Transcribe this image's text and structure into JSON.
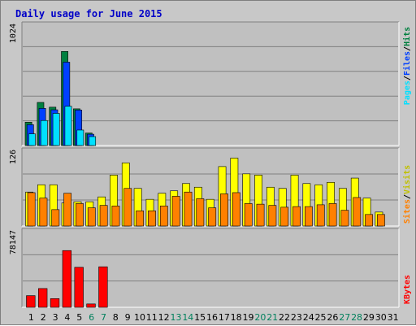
{
  "title": "Daily usage for June 2015",
  "colors": {
    "background": "#c8c8c8",
    "plot_background": "#c0c0c0",
    "hits": "#008040",
    "files": "#0040ff",
    "pages": "#00e0ff",
    "visits": "#ffff00",
    "sites": "#ff8000",
    "kbytes": "#ff0000",
    "weekend_label": "#00805c",
    "title": "#0000c8"
  },
  "chart_data": [
    {
      "type": "bar",
      "panel": "top",
      "scale_max_label": "1024",
      "ylim": [
        0,
        1024
      ],
      "legend": {
        "pages": "Pages",
        "files": "Files",
        "hits": "Hits",
        "sep": "/"
      },
      "categories": [
        "1",
        "2",
        "3",
        "4",
        "5",
        "6",
        "7",
        "8",
        "9",
        "10",
        "11",
        "12",
        "13",
        "14",
        "15",
        "16",
        "17",
        "18",
        "19",
        "20",
        "21",
        "22",
        "23",
        "24",
        "25",
        "26",
        "27",
        "28",
        "29",
        "30",
        "31"
      ],
      "series": [
        {
          "name": "Hits",
          "values": [
            196,
            362,
            322,
            790,
            308,
            105,
            0,
            0,
            0,
            0,
            0,
            0,
            0,
            0,
            0,
            0,
            0,
            0,
            0,
            0,
            0,
            0,
            0,
            0,
            0,
            0,
            0,
            0,
            0,
            0,
            0
          ]
        },
        {
          "name": "Files",
          "values": [
            175,
            312,
            300,
            700,
            298,
            95,
            0,
            0,
            0,
            0,
            0,
            0,
            0,
            0,
            0,
            0,
            0,
            0,
            0,
            0,
            0,
            0,
            0,
            0,
            0,
            0,
            0,
            0,
            0,
            0,
            0
          ]
        },
        {
          "name": "Pages",
          "values": [
            98,
            210,
            270,
            330,
            130,
            75,
            0,
            0,
            0,
            0,
            0,
            0,
            0,
            0,
            0,
            0,
            0,
            0,
            0,
            0,
            0,
            0,
            0,
            0,
            0,
            0,
            0,
            0,
            0,
            0,
            0
          ]
        }
      ]
    },
    {
      "type": "bar",
      "panel": "middle",
      "scale_max_label": "126",
      "ylim": [
        0,
        126
      ],
      "legend": {
        "sites": "Sites",
        "visits": "Visits",
        "sep": "/"
      },
      "categories": [
        "1",
        "2",
        "3",
        "4",
        "5",
        "6",
        "7",
        "8",
        "9",
        "10",
        "11",
        "12",
        "13",
        "14",
        "15",
        "16",
        "17",
        "18",
        "19",
        "20",
        "21",
        "22",
        "23",
        "24",
        "25",
        "26",
        "27",
        "28",
        "29",
        "30",
        "31"
      ],
      "series": [
        {
          "name": "Visits",
          "values": [
            56,
            68,
            68,
            38,
            40,
            40,
            48,
            84,
            104,
            62,
            44,
            54,
            58,
            70,
            64,
            44,
            98,
            112,
            86,
            84,
            64,
            62,
            84,
            70,
            68,
            72,
            62,
            79,
            46,
            23,
            0
          ]
        },
        {
          "name": "Sites",
          "values": [
            55,
            46,
            27,
            54,
            37,
            30,
            34,
            33,
            62,
            25,
            25,
            33,
            49,
            56,
            45,
            30,
            53,
            55,
            37,
            36,
            34,
            31,
            32,
            32,
            35,
            37,
            26,
            47,
            19,
            19,
            0
          ]
        }
      ]
    },
    {
      "type": "bar",
      "panel": "bottom",
      "scale_max_label": "78147",
      "ylim": [
        0,
        78147
      ],
      "legend": {
        "kbytes": "KBytes"
      },
      "categories": [
        "1",
        "2",
        "3",
        "4",
        "5",
        "6",
        "7",
        "8",
        "9",
        "10",
        "11",
        "12",
        "13",
        "14",
        "15",
        "16",
        "17",
        "18",
        "19",
        "20",
        "21",
        "22",
        "23",
        "24",
        "25",
        "26",
        "27",
        "28",
        "29",
        "30",
        "31"
      ],
      "series": [
        {
          "name": "KBytes",
          "values": [
            11800,
            19000,
            8800,
            57400,
            40500,
            3400,
            41000,
            0,
            0,
            0,
            0,
            0,
            0,
            0,
            0,
            0,
            0,
            0,
            0,
            0,
            0,
            0,
            0,
            0,
            0,
            0,
            0,
            0,
            0,
            0,
            0
          ]
        }
      ]
    }
  ],
  "weekend_days": [
    "6",
    "7",
    "13",
    "14",
    "20",
    "21",
    "27",
    "28"
  ]
}
